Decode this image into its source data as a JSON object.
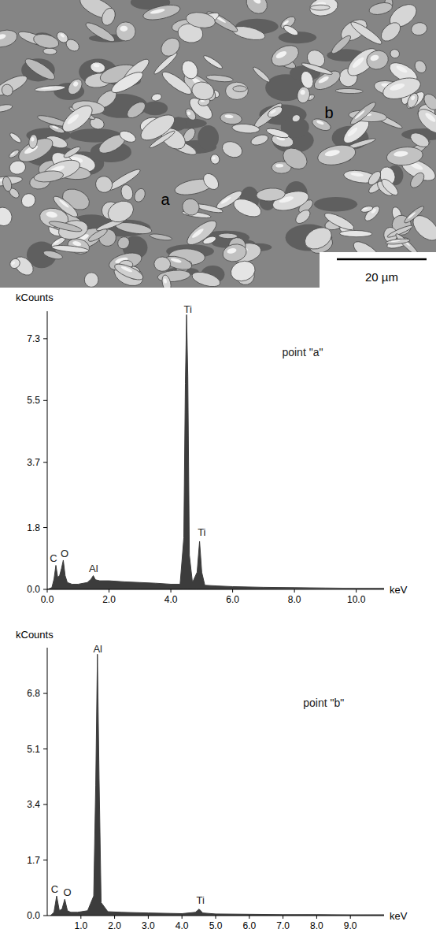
{
  "image": {
    "labels": [
      "a",
      "b"
    ],
    "scale_bar": "20 µm"
  },
  "chart_data": [
    {
      "type": "area",
      "y_label": "kCounts",
      "x_label": "keV",
      "color": "#3c3c3c",
      "grid": false,
      "xlim": [
        0,
        10.9
      ],
      "ylim": [
        0,
        8.1
      ],
      "xticks": [
        {
          "value": 0,
          "label": "0.0"
        },
        {
          "value": 2,
          "label": "2.0"
        },
        {
          "value": 4,
          "label": "4.0"
        },
        {
          "value": 6,
          "label": "6.0"
        },
        {
          "value": 8,
          "label": "8.0"
        },
        {
          "value": 10,
          "label": "10.0"
        }
      ],
      "yticks": [
        {
          "value": 0,
          "label": "0.0"
        },
        1.8,
        3.7,
        5.5,
        7.3
      ],
      "x": [
        0,
        0.15,
        0.22,
        0.28,
        0.34,
        0.4,
        0.46,
        0.52,
        0.58,
        0.65,
        0.8,
        1.0,
        1.3,
        1.42,
        1.49,
        1.56,
        1.7,
        2.0,
        2.5,
        3.0,
        3.5,
        4.0,
        4.3,
        4.42,
        4.47,
        4.51,
        4.55,
        4.6,
        4.7,
        4.85,
        4.93,
        5.0,
        5.1,
        5.5,
        6.0,
        7.0,
        8.0,
        9.0,
        10.0,
        10.9
      ],
      "values": [
        0,
        0.05,
        0.3,
        0.7,
        0.35,
        0.4,
        0.6,
        0.85,
        0.4,
        0.2,
        0.15,
        0.15,
        0.2,
        0.3,
        0.4,
        0.28,
        0.25,
        0.25,
        0.22,
        0.2,
        0.18,
        0.15,
        0.15,
        1.5,
        6.0,
        8.0,
        6.2,
        1.0,
        0.2,
        0.5,
        1.4,
        0.5,
        0.12,
        0.1,
        0.08,
        0.06,
        0.05,
        0.04,
        0.03,
        0.03
      ],
      "annotations": [
        {
          "text": "C",
          "x": 0.2,
          "y": 0.8
        },
        {
          "text": "O",
          "x": 0.56,
          "y": 0.95
        },
        {
          "text": "Al",
          "x": 1.5,
          "y": 0.5
        },
        {
          "text": "Ti",
          "x": 4.55,
          "y": 8.05
        },
        {
          "text": "Ti",
          "x": 5.0,
          "y": 1.55
        },
        {
          "text": "point \"a\"",
          "x": 7.6,
          "y": 6.8
        }
      ]
    },
    {
      "type": "area",
      "y_label": "kCounts",
      "x_label": "keV",
      "color": "#3c3c3c",
      "grid": false,
      "xlim": [
        0,
        10
      ],
      "ylim": [
        0,
        8.2
      ],
      "xticks": [
        {
          "value": 1,
          "label": "1.0"
        },
        {
          "value": 2,
          "label": "2.0"
        },
        {
          "value": 3,
          "label": "3.0"
        },
        {
          "value": 4,
          "label": "4.0"
        },
        {
          "value": 5,
          "label": "5.0"
        },
        {
          "value": 6,
          "label": "6.0"
        },
        {
          "value": 7,
          "label": "7.0"
        },
        {
          "value": 8,
          "label": "8.0"
        },
        {
          "value": 9,
          "label": "9.0"
        }
      ],
      "yticks": [
        {
          "value": 0,
          "label": "0.0"
        },
        1.7,
        3.4,
        5.1,
        6.8
      ],
      "x": [
        0.1,
        0.2,
        0.28,
        0.36,
        0.44,
        0.52,
        0.6,
        0.7,
        0.9,
        1.2,
        1.38,
        1.44,
        1.49,
        1.54,
        1.6,
        1.8,
        2.2,
        3.0,
        4.0,
        4.4,
        4.51,
        4.62,
        5.0,
        6.0,
        7.0,
        8.0,
        9.0,
        10.0
      ],
      "values": [
        0,
        0.1,
        0.6,
        0.15,
        0.2,
        0.5,
        0.15,
        0.1,
        0.1,
        0.15,
        0.6,
        4.0,
        8.0,
        4.2,
        0.4,
        0.12,
        0.1,
        0.08,
        0.06,
        0.1,
        0.2,
        0.08,
        0.05,
        0.04,
        0.03,
        0.03,
        0.02,
        0.02
      ],
      "annotations": [
        {
          "text": "C",
          "x": 0.22,
          "y": 0.7
        },
        {
          "text": "O",
          "x": 0.6,
          "y": 0.6
        },
        {
          "text": "Al",
          "x": 1.5,
          "y": 8.05
        },
        {
          "text": "Ti",
          "x": 4.55,
          "y": 0.35
        },
        {
          "text": "point \"b\"",
          "x": 7.6,
          "y": 6.4
        }
      ]
    }
  ]
}
